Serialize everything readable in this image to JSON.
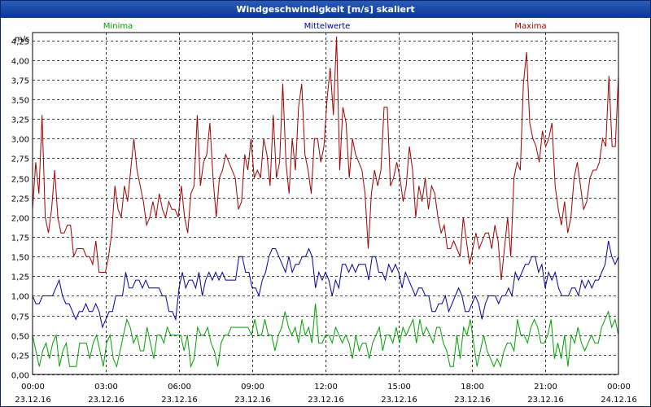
{
  "window": {
    "title": "Windgeschwindigkeit [m/s] skaliert"
  },
  "chart_data": {
    "type": "line",
    "title": "Windgeschwindigkeit [m/s] skaliert",
    "ylabel": "m/s",
    "ylim": [
      0,
      4.35
    ],
    "y_ticks": [
      "0,00",
      "0,25",
      "0,50",
      "0,75",
      "1,00",
      "1,25",
      "1,50",
      "1,75",
      "2,00",
      "2,25",
      "2,50",
      "2,75",
      "3,00",
      "3,25",
      "3,50",
      "3,75",
      "4,00",
      "4,25"
    ],
    "x_ticks": [
      {
        "time": "00:00",
        "date": "23.12.16"
      },
      {
        "time": "03:00",
        "date": "23.12.16"
      },
      {
        "time": "06:00",
        "date": "23.12.16"
      },
      {
        "time": "09:00",
        "date": "23.12.16"
      },
      {
        "time": "12:00",
        "date": "23.12.16"
      },
      {
        "time": "15:00",
        "date": "23.12.16"
      },
      {
        "time": "18:00",
        "date": "23.12.16"
      },
      {
        "time": "21:00",
        "date": "23.12.16"
      },
      {
        "time": "00:00",
        "date": "24.12.16"
      }
    ],
    "grid": true,
    "series": [
      {
        "name": "Minima",
        "color": "#00a000",
        "values": [
          0.5,
          0.3,
          0.1,
          0.3,
          0.4,
          0.2,
          0.4,
          0.5,
          0.1,
          0.3,
          0.4,
          0.1,
          0.1,
          0.1,
          0.4,
          0.4,
          0.4,
          0.2,
          0.4,
          0.5,
          0.3,
          0.1,
          0.4,
          0.5,
          0.2,
          0.1,
          0.3,
          0.5,
          0.7,
          0.6,
          0.4,
          0.5,
          0.3,
          0.3,
          0.6,
          0.4,
          0.2,
          0.5,
          0.5,
          0.4,
          0.6,
          0.5,
          0.5,
          0.5,
          0.5,
          0.3,
          0.5,
          0.1,
          0.2,
          0.6,
          0.5,
          0.5,
          0.6,
          0.4,
          0.3,
          0.1,
          0.4,
          0.5,
          0.5,
          0.6,
          0.6,
          0.6,
          0.6,
          0.6,
          0.6,
          0.5,
          0.7,
          0.5,
          0.5,
          0.7,
          0.5,
          0.5,
          0.3,
          0.5,
          0.6,
          0.8,
          0.6,
          0.5,
          0.6,
          0.4,
          0.7,
          0.5,
          0.6,
          0.4,
          0.9,
          0.4,
          0.4,
          0.5,
          0.5,
          0.4,
          0.6,
          0.5,
          0.4,
          0.5,
          0.4,
          0.2,
          0.5,
          0.3,
          0.4,
          0.4,
          0.2,
          0.4,
          0.5,
          0.6,
          0.3,
          0.5,
          0.5,
          0.4,
          0.6,
          0.4,
          0.6,
          0.5,
          0.6,
          0.7,
          0.4,
          0.7,
          0.5,
          0.6,
          0.5,
          0.4,
          0.6,
          0.6,
          0.4,
          0.3,
          0.1,
          0.1,
          0.5,
          0.2,
          0.6,
          0.5,
          0.7,
          0.4,
          0.1,
          0.3,
          0.5,
          0.3,
          0.2,
          0.1,
          0.2,
          0.1,
          0.3,
          0.4,
          0.4,
          0.3,
          0.7,
          0.5,
          0.5,
          0.4,
          0.6,
          0.7,
          0.6,
          0.4,
          0.4,
          0.5,
          0.7,
          0.2,
          0.4,
          0.2,
          0.5,
          0.1,
          0.5,
          0.4,
          0.6,
          0.4,
          0.3,
          0.4,
          0.5,
          0.4,
          0.4,
          0.6,
          0.7,
          0.8,
          0.6,
          0.7,
          0.5
        ]
      },
      {
        "name": "Mittelwerte",
        "color": "#0000a0",
        "values": [
          1.0,
          0.9,
          0.9,
          1.0,
          1.0,
          1.0,
          1.0,
          1.1,
          1.2,
          1.0,
          0.9,
          0.9,
          0.8,
          0.7,
          0.8,
          0.8,
          0.9,
          0.8,
          0.8,
          0.9,
          0.8,
          0.6,
          0.7,
          0.8,
          0.8,
          1.0,
          1.0,
          1.0,
          1.3,
          1.1,
          1.1,
          1.2,
          1.2,
          1.1,
          1.2,
          1.1,
          1.1,
          1.1,
          1.1,
          1.0,
          1.0,
          0.8,
          0.8,
          0.7,
          1.1,
          1.3,
          1.1,
          1.2,
          1.2,
          1.1,
          1.3,
          1.0,
          1.2,
          1.3,
          1.2,
          1.3,
          1.2,
          1.3,
          1.2,
          1.2,
          1.2,
          1.2,
          1.5,
          1.5,
          1.3,
          1.3,
          1.1,
          1.1,
          1.0,
          1.2,
          1.3,
          1.5,
          1.6,
          1.6,
          1.5,
          1.4,
          1.3,
          1.5,
          1.3,
          1.4,
          1.4,
          1.5,
          1.5,
          1.6,
          1.5,
          1.1,
          1.3,
          1.2,
          1.3,
          1.2,
          1.0,
          1.2,
          1.1,
          1.4,
          1.4,
          1.3,
          1.4,
          1.3,
          1.4,
          1.4,
          1.4,
          1.2,
          1.5,
          1.5,
          1.3,
          1.3,
          1.2,
          1.4,
          1.3,
          1.4,
          1.3,
          1.1,
          1.3,
          1.2,
          1.1,
          1.0,
          1.1,
          1.1,
          1.0,
          1.0,
          0.8,
          0.8,
          0.9,
          0.9,
          1.0,
          0.8,
          0.9,
          1.0,
          1.1,
          1.0,
          0.8,
          0.8,
          0.9,
          1.0,
          0.9,
          0.7,
          0.9,
          1.0,
          1.0,
          1.0,
          0.9,
          1.0,
          1.0,
          1.1,
          1.0,
          1.3,
          1.2,
          1.3,
          1.4,
          1.4,
          1.5,
          1.5,
          1.3,
          1.4,
          1.1,
          1.3,
          1.2,
          1.3,
          1.1,
          1.0,
          1.0,
          1.0,
          1.1,
          1.1,
          1.0,
          1.2,
          1.1,
          1.2,
          1.1,
          1.2,
          1.2,
          1.3,
          1.4,
          1.7,
          1.5,
          1.4,
          1.5
        ]
      },
      {
        "name": "Maxima",
        "color": "#a00000",
        "values": [
          2.1,
          2.7,
          2.3,
          3.3,
          2.0,
          1.8,
          2.1,
          2.6,
          2.0,
          1.8,
          1.8,
          1.9,
          1.9,
          1.5,
          1.6,
          1.6,
          1.6,
          1.5,
          1.5,
          1.4,
          1.7,
          1.3,
          1.3,
          1.3,
          1.5,
          1.8,
          2.4,
          2.1,
          2.0,
          2.4,
          2.2,
          2.6,
          3.0,
          2.6,
          2.4,
          2.2,
          1.9,
          2.0,
          2.2,
          2.0,
          2.3,
          2.1,
          2.0,
          2.2,
          2.1,
          2.1,
          2.0,
          2.4,
          2.0,
          1.8,
          2.3,
          2.4,
          3.3,
          2.4,
          2.7,
          2.8,
          3.2,
          2.5,
          2.0,
          2.5,
          2.6,
          2.8,
          2.7,
          2.6,
          2.5,
          2.1,
          2.2,
          2.8,
          2.6,
          3.0,
          2.5,
          2.6,
          2.5,
          3.0,
          2.8,
          2.4,
          3.3,
          2.5,
          2.7,
          3.7,
          2.7,
          2.3,
          3.0,
          2.6,
          3.4,
          3.7,
          2.8,
          2.6,
          2.3,
          3.0,
          3.0,
          2.7,
          2.9,
          3.5,
          3.9,
          3.3,
          4.3,
          2.6,
          3.4,
          3.2,
          2.5,
          3.0,
          2.8,
          2.7,
          2.6,
          2.3,
          1.6,
          2.3,
          2.6,
          2.4,
          2.6,
          3.4,
          3.4,
          2.4,
          2.5,
          2.7,
          2.5,
          2.2,
          2.4,
          2.9,
          2.6,
          2.0,
          2.4,
          2.2,
          2.5,
          2.1,
          2.4,
          2.3,
          2.0,
          1.8,
          1.9,
          1.6,
          1.6,
          1.7,
          1.6,
          1.5,
          2.0,
          1.7,
          1.4,
          1.6,
          1.8,
          1.6,
          1.7,
          1.8,
          1.8,
          1.6,
          1.9,
          1.7,
          1.2,
          1.6,
          2.0,
          1.5,
          2.5,
          2.7,
          2.6,
          3.7,
          4.1,
          3.2,
          3.0,
          2.9,
          2.7,
          3.1,
          2.9,
          3.0,
          3.2,
          2.4,
          2.1,
          1.9,
          2.2,
          1.8,
          2.0,
          2.5,
          2.7,
          2.4,
          2.1,
          2.2,
          2.5,
          2.6,
          2.6,
          2.7,
          3.0,
          2.9,
          3.8,
          2.9,
          2.9,
          3.8
        ]
      }
    ]
  }
}
